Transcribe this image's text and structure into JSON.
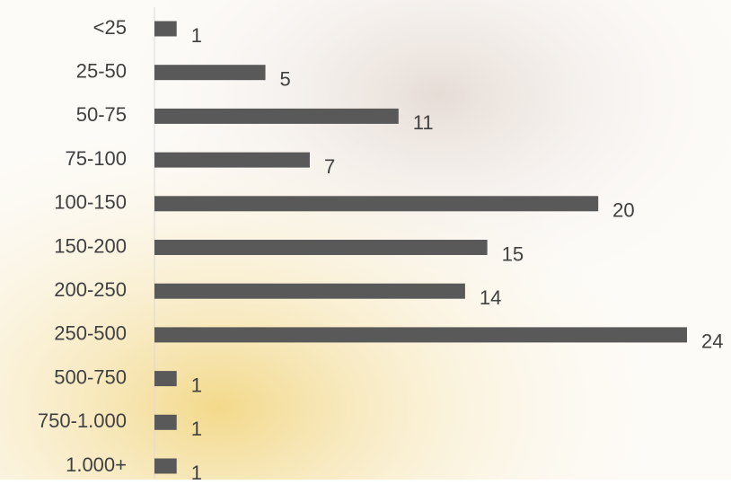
{
  "chart_data": {
    "type": "bar",
    "orientation": "horizontal",
    "categories": [
      "<25",
      "25-50",
      "50-75",
      "75-100",
      "100-150",
      "150-200",
      "200-250",
      "250-500",
      "500-750",
      "750-1.000",
      "1.000+"
    ],
    "values": [
      1,
      5,
      11,
      7,
      20,
      15,
      14,
      24,
      1,
      1,
      1
    ],
    "color": "#595959"
  }
}
